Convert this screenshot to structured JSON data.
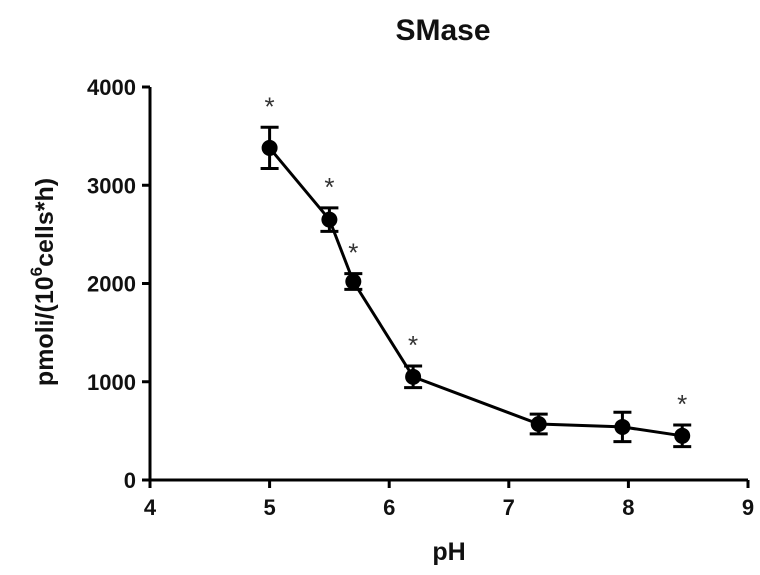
{
  "chart_data": {
    "type": "line",
    "title": "SMase",
    "xlabel": "pH",
    "ylabel_parts": {
      "pre": "pmoli/(10",
      "sup": "6",
      "post": "cells*h)"
    },
    "xlim": [
      4,
      9
    ],
    "ylim": [
      0,
      4000
    ],
    "x_ticks": [
      "4",
      "5",
      "6",
      "7",
      "8",
      "9"
    ],
    "y_ticks": [
      "0",
      "1000",
      "2000",
      "3000",
      "4000"
    ],
    "significance_marker": "*",
    "series": [
      {
        "x": [
          5.0,
          5.5,
          5.7,
          6.2,
          7.25,
          7.95,
          8.45
        ],
        "y": [
          3380,
          2650,
          2020,
          1050,
          570,
          540,
          450
        ],
        "err": [
          210,
          120,
          80,
          110,
          100,
          150,
          110
        ],
        "significant": [
          true,
          true,
          true,
          true,
          false,
          false,
          true
        ]
      }
    ],
    "grid": false,
    "legend": "none"
  }
}
